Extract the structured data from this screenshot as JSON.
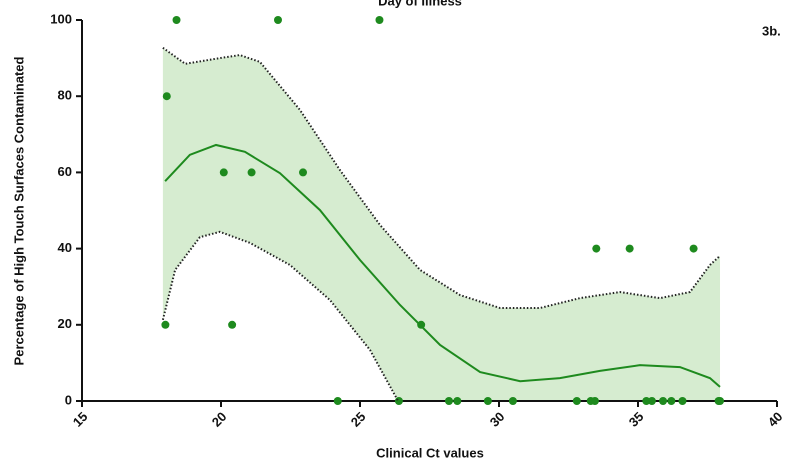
{
  "chart_data": {
    "type": "scatter",
    "title": "Day of Illness",
    "annotation": "3b.",
    "x_label": "Clinical Ct values",
    "y_label": "Percentage of High Touch Surfaces Contaminated",
    "xlim": [
      15,
      40
    ],
    "xticks": [
      15,
      20,
      25,
      30,
      35,
      40
    ],
    "ylim": [
      0,
      100
    ],
    "yticks": [
      0,
      20,
      40,
      60,
      80,
      100
    ],
    "band_color": "#d6ecd0",
    "series": [
      {
        "style": "points",
        "color": "#1e8a1e",
        "x": [
          18.4,
          22.05,
          25.7,
          18.05,
          20.1,
          21.1,
          22.95,
          18.0,
          20.4,
          27.2,
          33.5,
          34.7,
          37.0,
          24.2,
          26.4,
          28.2,
          28.5,
          29.6,
          30.5,
          32.8,
          33.3,
          33.45,
          35.3,
          35.5,
          35.9,
          36.2,
          36.6,
          37.9,
          37.95
        ],
        "values": [
          100,
          100,
          100,
          80,
          60,
          60,
          60,
          20,
          20,
          20,
          40,
          40,
          40,
          0,
          0,
          0,
          0,
          0,
          0,
          0,
          0,
          0,
          0,
          0,
          0,
          0,
          0,
          0,
          0
        ]
      },
      {
        "style": "line",
        "color": "#1e8a1e",
        "x": [
          17.99,
          18.88,
          19.82,
          20.86,
          22.12,
          23.56,
          25.0,
          26.44,
          27.88,
          29.32,
          30.76,
          32.19,
          33.63,
          35.07,
          36.51,
          37.59,
          37.95
        ],
        "values": [
          57.7,
          64.6,
          67.2,
          65.4,
          59.8,
          50.1,
          37.0,
          25.2,
          14.7,
          7.6,
          5.2,
          6.0,
          7.9,
          9.4,
          8.9,
          6.0,
          3.7
        ]
      },
      {
        "style": "band-upper",
        "color": "#222222",
        "x": [
          17.91,
          18.71,
          19.96,
          20.68,
          21.4,
          22.84,
          24.28,
          25.72,
          27.16,
          28.6,
          30.04,
          31.47,
          32.91,
          34.35,
          35.79,
          36.87,
          37.59,
          37.95
        ],
        "values": [
          92.7,
          88.5,
          90.0,
          90.8,
          89.0,
          76.4,
          60.6,
          46.2,
          34.4,
          27.8,
          24.4,
          24.4,
          27.0,
          28.6,
          27.0,
          28.6,
          35.7,
          38.1
        ]
      },
      {
        "style": "band-lower",
        "color": "#222222",
        "x": [
          17.91,
          18.35,
          19.24,
          19.96,
          21.04,
          22.48,
          23.92,
          25.36,
          26.37
        ],
        "values": [
          21.3,
          34.4,
          43.0,
          44.4,
          41.5,
          35.7,
          26.5,
          13.4,
          0
        ]
      }
    ]
  }
}
